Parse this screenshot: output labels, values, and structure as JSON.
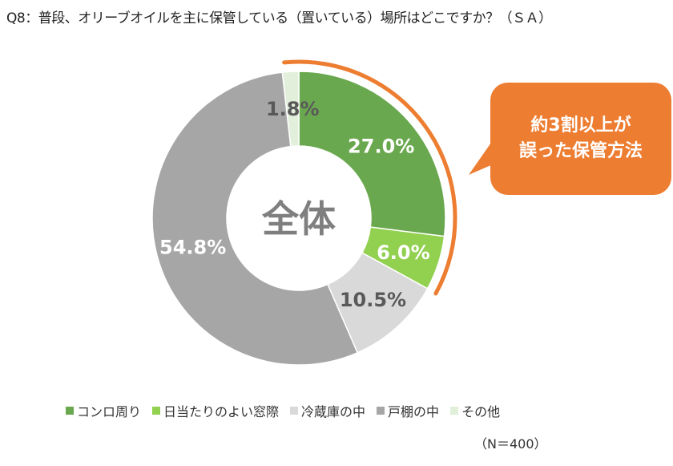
{
  "title": "Q8：普段、オリーブオイルを主に保管している（置いている）場所はどこですか？（ＳＡ）",
  "center_label": "全体",
  "callout": {
    "line1": "約3割以上が",
    "line2": "誤った保管方法",
    "color": "#ed7d31"
  },
  "note": "（N＝400）",
  "chart_data": {
    "type": "pie",
    "donut": true,
    "categories": [
      "コンロ周り",
      "日当たりのよい窓際",
      "冷蔵庫の中",
      "戸棚の中",
      "その他"
    ],
    "values": [
      27.0,
      6.0,
      10.5,
      54.8,
      1.8
    ],
    "labels": [
      "27.0%",
      "6.0%",
      "10.5%",
      "54.8%",
      "1.8%"
    ],
    "colors": [
      "#6aa84f",
      "#92d050",
      "#d9d9d9",
      "#a6a6a6",
      "#e2efda"
    ],
    "label_colors": [
      "#ffffff",
      "#ffffff",
      "#595959",
      "#ffffff",
      "#595959"
    ],
    "highlight_arc": {
      "from_percent": 0,
      "to_percent": 33.0,
      "color": "#ed7d31"
    },
    "legend_position": "bottom"
  }
}
